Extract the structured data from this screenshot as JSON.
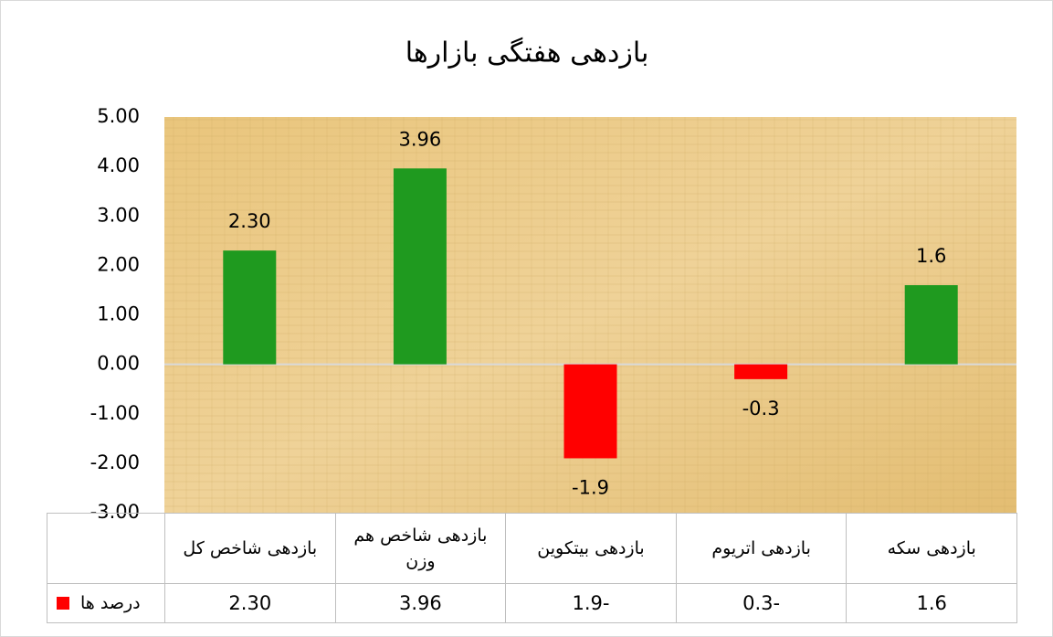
{
  "chart_data": {
    "type": "bar",
    "title": "بازدهی هفتگی بازارها",
    "categories": [
      "بازدهی شاخص کل",
      "بازدهی  شاخص هم وزن",
      "بازدهی بیتکوین",
      "بازدهی اتریوم",
      "بازدهی سکه"
    ],
    "series": [
      {
        "name": "درصد ها",
        "color": "#ff0000",
        "colors": [
          "#1f9a1f",
          "#1f9a1f",
          "#ff0000",
          "#ff0000",
          "#1f9a1f"
        ],
        "values": [
          2.3,
          3.96,
          -1.9,
          -0.3,
          1.6
        ],
        "value_labels": [
          "2.30",
          "3.96",
          "-1.9",
          "-0.3",
          "1.6"
        ]
      }
    ],
    "ylim": [
      -3,
      5
    ],
    "yticks": [
      {
        "value": -3,
        "label": "-3.00"
      },
      {
        "value": -2,
        "label": "-2.00"
      },
      {
        "value": -1,
        "label": "-1.00"
      },
      {
        "value": 0,
        "label": "0.00"
      },
      {
        "value": 1,
        "label": "1.00"
      },
      {
        "value": 2,
        "label": "2.00"
      },
      {
        "value": 3,
        "label": "3.00"
      },
      {
        "value": 4,
        "label": "4.00"
      },
      {
        "value": 5,
        "label": "5.00"
      }
    ],
    "grid": false
  }
}
